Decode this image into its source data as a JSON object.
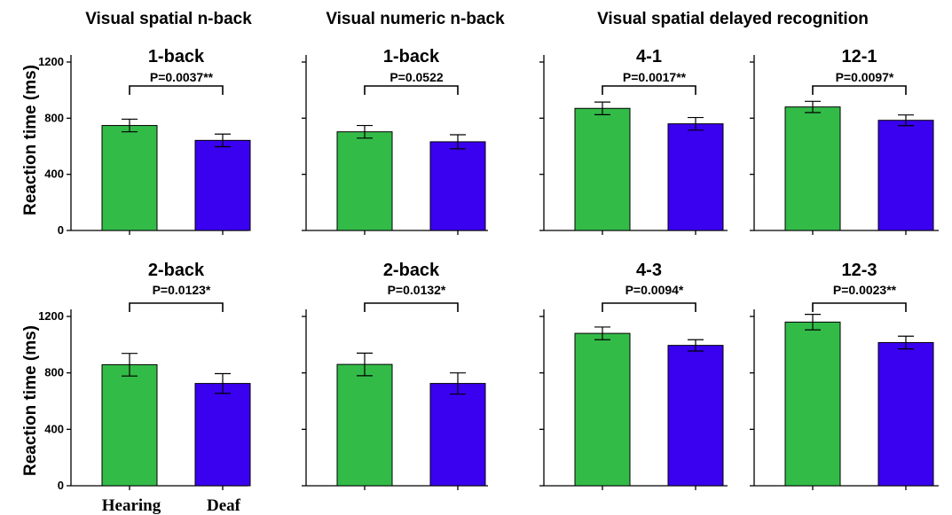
{
  "figure": {
    "section_titles": [
      "Visual spatial n-back",
      "Visual numeric n-back",
      "Visual spatial delayed recognition"
    ],
    "ylabel": "Reaction time (ms)",
    "group_labels": [
      "Hearing",
      "Deaf"
    ]
  },
  "colors": {
    "hearing": "#33bb48",
    "deaf": "#3a00f0",
    "axis": "#000000"
  },
  "chart_data": [
    {
      "type": "bar",
      "section": "Visual spatial n-back",
      "title": "1-back",
      "categories": [
        "Hearing",
        "Deaf"
      ],
      "values": [
        748,
        642
      ],
      "errors": [
        45,
        45
      ],
      "annotation": "P=0.0037**",
      "ylim": [
        0,
        1200
      ],
      "yticks": [
        0,
        400,
        800,
        1200
      ],
      "xlabel": "",
      "ylabel": "Reaction time (ms)"
    },
    {
      "type": "bar",
      "section": "Visual numeric n-back",
      "title": "1-back",
      "categories": [
        "Hearing",
        "Deaf"
      ],
      "values": [
        703,
        632
      ],
      "errors": [
        45,
        50
      ],
      "annotation": "P=0.0522",
      "ylim": [
        0,
        1200
      ],
      "yticks": [
        0,
        400,
        800,
        1200
      ],
      "xlabel": "",
      "ylabel": ""
    },
    {
      "type": "bar",
      "section": "Visual spatial delayed recognition",
      "title": "4-1",
      "categories": [
        "Hearing",
        "Deaf"
      ],
      "values": [
        870,
        760
      ],
      "errors": [
        45,
        45
      ],
      "annotation": "P=0.0017**",
      "ylim": [
        0,
        1200
      ],
      "yticks": [
        0,
        400,
        800,
        1200
      ],
      "xlabel": "",
      "ylabel": ""
    },
    {
      "type": "bar",
      "section": "Visual spatial delayed recognition",
      "title": "12-1",
      "categories": [
        "Hearing",
        "Deaf"
      ],
      "values": [
        880,
        785
      ],
      "errors": [
        40,
        38
      ],
      "annotation": "P=0.0097*",
      "ylim": [
        0,
        1200
      ],
      "yticks": [
        0,
        400,
        800,
        1200
      ],
      "xlabel": "",
      "ylabel": ""
    },
    {
      "type": "bar",
      "section": "Visual spatial n-back",
      "title": "2-back",
      "categories": [
        "Hearing",
        "Deaf"
      ],
      "values": [
        858,
        725
      ],
      "errors": [
        80,
        70
      ],
      "annotation": "P=0.0123*",
      "ylim": [
        0,
        1200
      ],
      "yticks": [
        0,
        400,
        800,
        1200
      ],
      "xlabel": "",
      "ylabel": "Reaction time (ms)"
    },
    {
      "type": "bar",
      "section": "Visual numeric n-back",
      "title": "2-back",
      "categories": [
        "Hearing",
        "Deaf"
      ],
      "values": [
        860,
        725
      ],
      "errors": [
        80,
        75
      ],
      "annotation": "P=0.0132*",
      "ylim": [
        0,
        1200
      ],
      "yticks": [
        0,
        400,
        800,
        1200
      ],
      "xlabel": "",
      "ylabel": ""
    },
    {
      "type": "bar",
      "section": "Visual spatial delayed recognition",
      "title": "4-3",
      "categories": [
        "Hearing",
        "Deaf"
      ],
      "values": [
        1080,
        995
      ],
      "errors": [
        45,
        40
      ],
      "annotation": "P=0.0094*",
      "ylim": [
        0,
        1200
      ],
      "yticks": [
        0,
        400,
        800,
        1200
      ],
      "xlabel": "",
      "ylabel": ""
    },
    {
      "type": "bar",
      "section": "Visual spatial delayed recognition",
      "title": "12-3",
      "categories": [
        "Hearing",
        "Deaf"
      ],
      "values": [
        1160,
        1015
      ],
      "errors": [
        55,
        45
      ],
      "annotation": "P=0.0023**",
      "ylim": [
        0,
        1200
      ],
      "yticks": [
        0,
        400,
        800,
        1200
      ],
      "xlabel": "",
      "ylabel": ""
    }
  ]
}
